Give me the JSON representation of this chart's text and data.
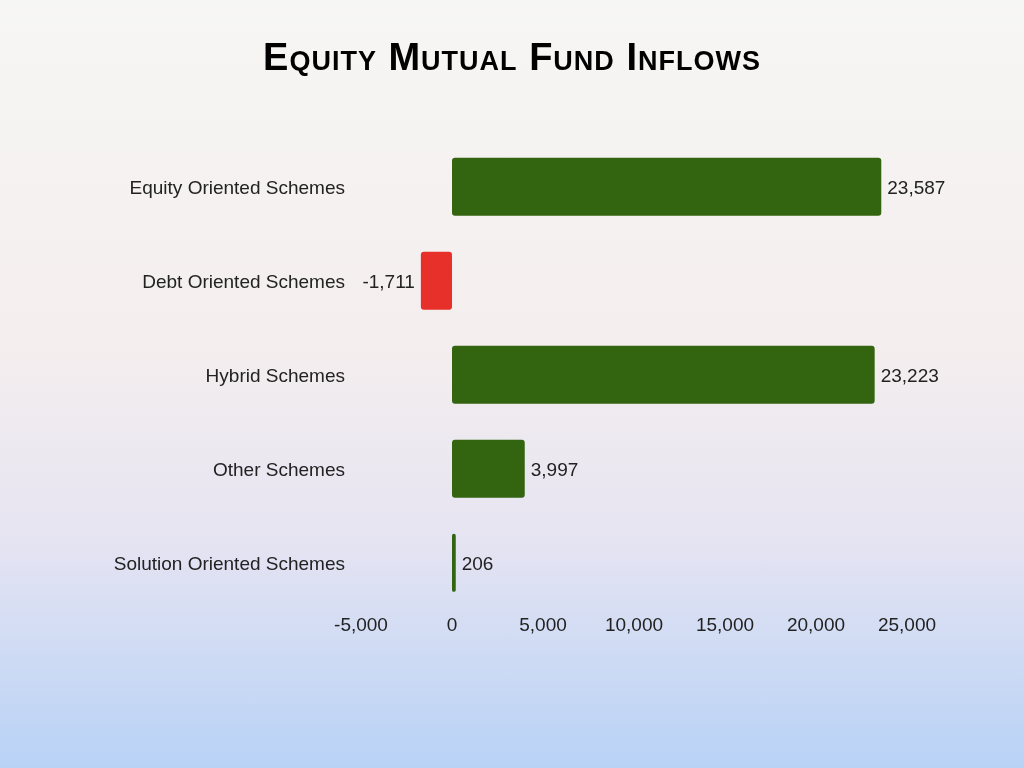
{
  "chart_data": {
    "type": "bar",
    "orientation": "horizontal",
    "title": "Equity Mutual Fund Inflows",
    "categories": [
      "Equity Oriented Schemes",
      "Debt Oriented Schemes",
      "Hybrid Schemes",
      "Other Schemes",
      "Solution Oriented Schemes"
    ],
    "values": [
      23587,
      -1711,
      23223,
      3997,
      206
    ],
    "value_labels": [
      "23,587",
      "-1,711",
      "23,223",
      "3,997",
      "206"
    ],
    "colors": [
      "#336410",
      "#e8302a",
      "#336410",
      "#336410",
      "#336410"
    ],
    "xlim": [
      -5000,
      25000
    ],
    "xticks": [
      {
        "value": -5000,
        "label": "-5,000"
      },
      0,
      {
        "value": 5000,
        "label": "5,000"
      },
      {
        "value": 10000,
        "label": "10,000"
      },
      {
        "value": 15000,
        "label": "15,000"
      },
      {
        "value": 20000,
        "label": "20,000"
      },
      {
        "value": 25000,
        "label": "25,000"
      }
    ],
    "grid": false
  }
}
